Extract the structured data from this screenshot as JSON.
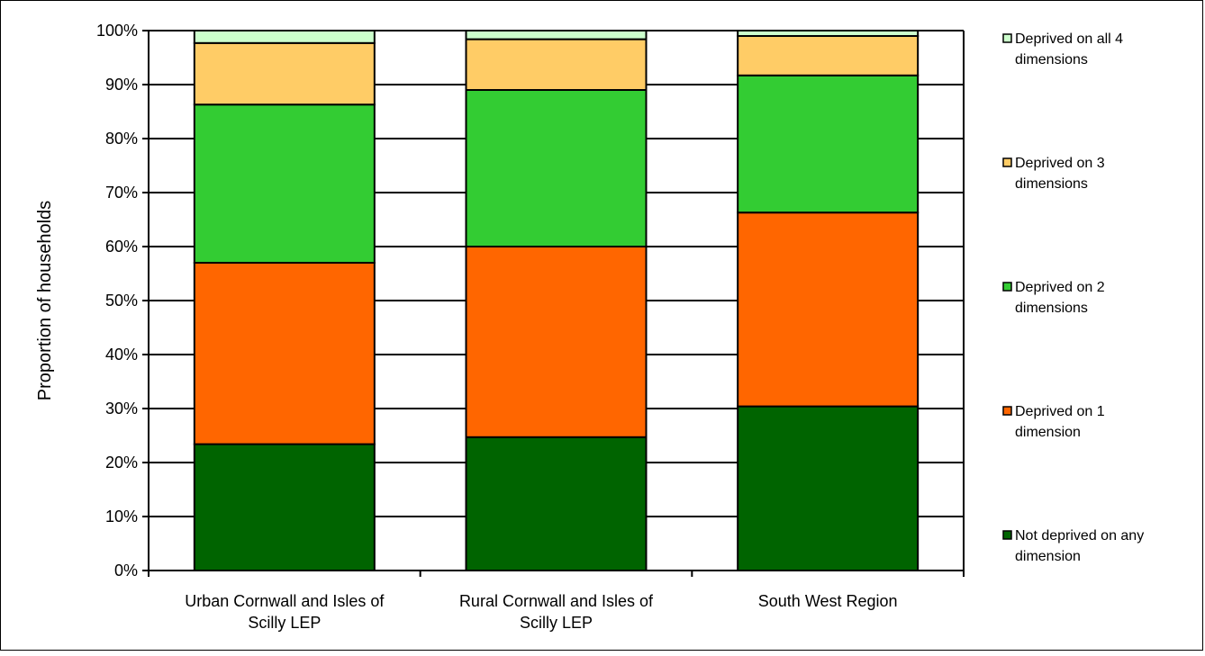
{
  "chart_data": {
    "type": "bar",
    "stacked": true,
    "percent_scale": true,
    "ylabel": "Proportion of households",
    "ylim": [
      0,
      100
    ],
    "yticks": [
      0,
      10,
      20,
      30,
      40,
      50,
      60,
      70,
      80,
      90,
      100
    ],
    "ytick_labels": [
      "0%",
      "10%",
      "20%",
      "30%",
      "40%",
      "50%",
      "60%",
      "70%",
      "80%",
      "90%",
      "100%"
    ],
    "grid": true,
    "legend_position": "right",
    "categories": [
      [
        "Urban Cornwall and Isles of",
        "Scilly LEP"
      ],
      [
        "Rural Cornwall and Isles of",
        "Scilly LEP"
      ],
      [
        "South West Region"
      ]
    ],
    "series": [
      {
        "name": [
          "Not deprived on any",
          "dimension"
        ],
        "color": "#006400",
        "values": [
          23.4,
          24.7,
          30.4
        ]
      },
      {
        "name": [
          "Deprived on 1",
          "dimension"
        ],
        "color": "#ff6600",
        "values": [
          33.6,
          35.3,
          35.9
        ]
      },
      {
        "name": [
          "Deprived on 2",
          "dimensions"
        ],
        "color": "#33cc33",
        "values": [
          29.3,
          29.0,
          25.4
        ]
      },
      {
        "name": [
          "Deprived on 3",
          "dimensions"
        ],
        "color": "#ffcc66",
        "values": [
          11.4,
          9.4,
          7.3
        ]
      },
      {
        "name": [
          "Deprived on all 4",
          "dimensions"
        ],
        "color": "#ccffcc",
        "values": [
          2.3,
          1.6,
          1.0
        ]
      }
    ]
  }
}
